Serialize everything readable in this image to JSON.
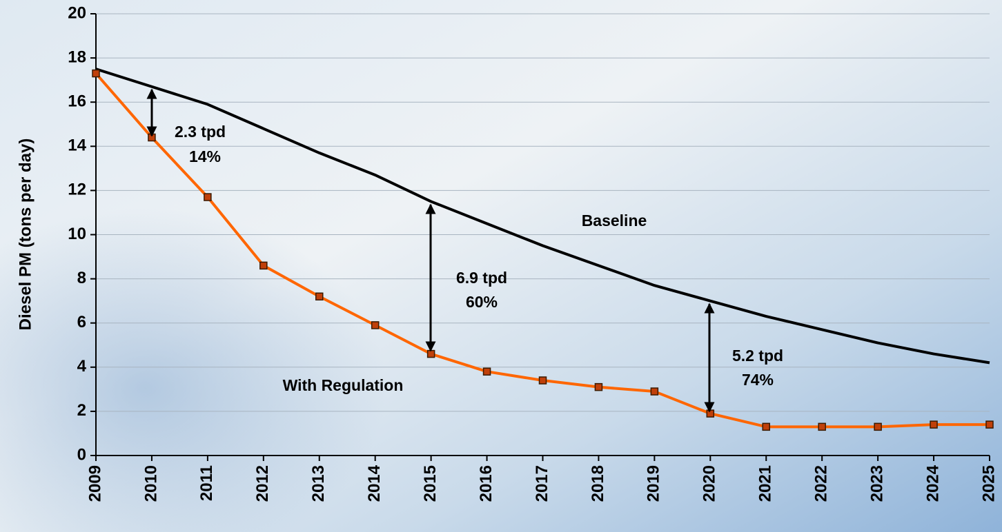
{
  "chart_data": {
    "type": "line",
    "y_label": "Diesel PM (tons per day)",
    "categories": [
      "2009",
      "2010",
      "2011",
      "2012",
      "2013",
      "2014",
      "2015",
      "2016",
      "2017",
      "2018",
      "2019",
      "2020",
      "2021",
      "2022",
      "2023",
      "2024",
      "2025"
    ],
    "series": [
      {
        "name": "Baseline",
        "color": "#000000",
        "markers": false,
        "values": [
          17.5,
          16.7,
          15.9,
          14.8,
          13.7,
          12.7,
          11.5,
          10.5,
          9.5,
          8.6,
          7.7,
          7.0,
          6.3,
          5.7,
          5.1,
          4.6,
          4.2
        ]
      },
      {
        "name": "With Regulation",
        "color": "#ff6600",
        "markers": true,
        "marker_color": "#c0400a",
        "values": [
          17.3,
          14.4,
          11.7,
          8.6,
          7.2,
          5.9,
          4.6,
          3.8,
          3.4,
          3.1,
          2.9,
          1.9,
          1.3,
          1.3,
          1.3,
          1.4,
          1.4
        ]
      }
    ],
    "annotations": [
      "2.3 tpd",
      "14%",
      "6.9 tpd",
      "60%",
      "5.2 tpd",
      "74%"
    ],
    "ylim": [
      0,
      20
    ],
    "yticks": [
      0,
      2,
      4,
      6,
      8,
      10,
      12,
      14,
      16,
      18,
      20
    ],
    "grid": true
  }
}
